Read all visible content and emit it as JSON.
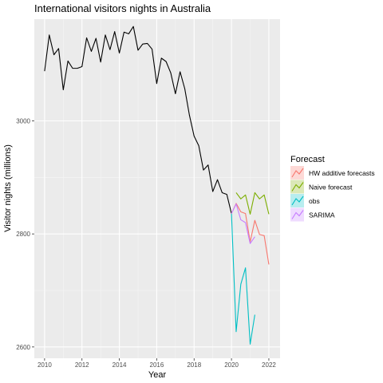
{
  "chart_data": {
    "type": "line",
    "title": "International visitors nights in Australia",
    "xlabel": "Year",
    "ylabel": "Visitor nights (millions)",
    "xlim": [
      2009.45,
      2022.6
    ],
    "ylim": [
      2580,
      3180
    ],
    "x_ticks": [
      2010,
      2012,
      2014,
      2016,
      2018,
      2020,
      2022
    ],
    "x_tick_labels": [
      "2010",
      "2012",
      "2014",
      "2016",
      "2018",
      "2020",
      "2022"
    ],
    "y_ticks": [
      2600,
      2800,
      3000
    ],
    "y_tick_labels": [
      "2600",
      "2800",
      "3000"
    ],
    "grid": true,
    "legend": {
      "title": "Forecast",
      "placement": "right",
      "entries": [
        {
          "label": "HW additive forecasts",
          "color": "#F8766D"
        },
        {
          "label": "Naive forecast",
          "color": "#7CAE00"
        },
        {
          "label": "obs",
          "color": "#00BFC4"
        },
        {
          "label": "SARIMA",
          "color": "#C77CFF"
        }
      ]
    },
    "history": {
      "color": "#000000",
      "x": [
        2010.0,
        2010.25,
        2010.5,
        2010.75,
        2011.0,
        2011.25,
        2011.5,
        2011.75,
        2012.0,
        2012.25,
        2012.5,
        2012.75,
        2013.0,
        2013.25,
        2013.5,
        2013.75,
        2014.0,
        2014.25,
        2014.5,
        2014.75,
        2015.0,
        2015.25,
        2015.5,
        2015.75,
        2016.0,
        2016.25,
        2016.5,
        2016.75,
        2017.0,
        2017.25,
        2017.5,
        2017.75,
        2018.0,
        2018.25,
        2018.5,
        2018.75,
        2019.0,
        2019.25,
        2019.5,
        2019.75,
        2020.0
      ],
      "y": [
        3088,
        3152,
        3117,
        3128,
        3055,
        3106,
        3093,
        3093,
        3096,
        3147,
        3123,
        3146,
        3104,
        3152,
        3126,
        3158,
        3120,
        3157,
        3154,
        3167,
        3125,
        3136,
        3137,
        3127,
        3066,
        3111,
        3105,
        3085,
        3048,
        3087,
        3057,
        3010,
        2973,
        2956,
        2913,
        2922,
        2875,
        2896,
        2873,
        2870,
        2836
      ]
    },
    "series": [
      {
        "name": "HW additive forecasts",
        "color": "#F8766D",
        "x": [
          2020.0,
          2020.25,
          2020.5,
          2020.75,
          2021.0,
          2021.25,
          2021.5,
          2021.75,
          2022.0
        ],
        "y": [
          2836,
          2854,
          2839,
          2836,
          2786,
          2824,
          2799,
          2797,
          2746
        ]
      },
      {
        "name": "Naive forecast",
        "color": "#7CAE00",
        "x": [
          2020.25,
          2020.5,
          2020.75,
          2021.0,
          2021.25,
          2021.5,
          2021.75,
          2022.0
        ],
        "y": [
          2873,
          2862,
          2869,
          2835,
          2873,
          2862,
          2869,
          2835
        ]
      },
      {
        "name": "obs",
        "color": "#00BFC4",
        "x": [
          2020.0,
          2020.25,
          2020.5,
          2020.75,
          2021.0,
          2021.25
        ],
        "y": [
          2836,
          2627,
          2711,
          2740,
          2605,
          2657
        ]
      },
      {
        "name": "SARIMA",
        "color": "#C77CFF",
        "x": [
          2020.0,
          2020.25,
          2020.5,
          2020.75,
          2021.0,
          2021.25
        ],
        "y": [
          2836,
          2853,
          2825,
          2820,
          2783,
          2795
        ]
      }
    ]
  }
}
